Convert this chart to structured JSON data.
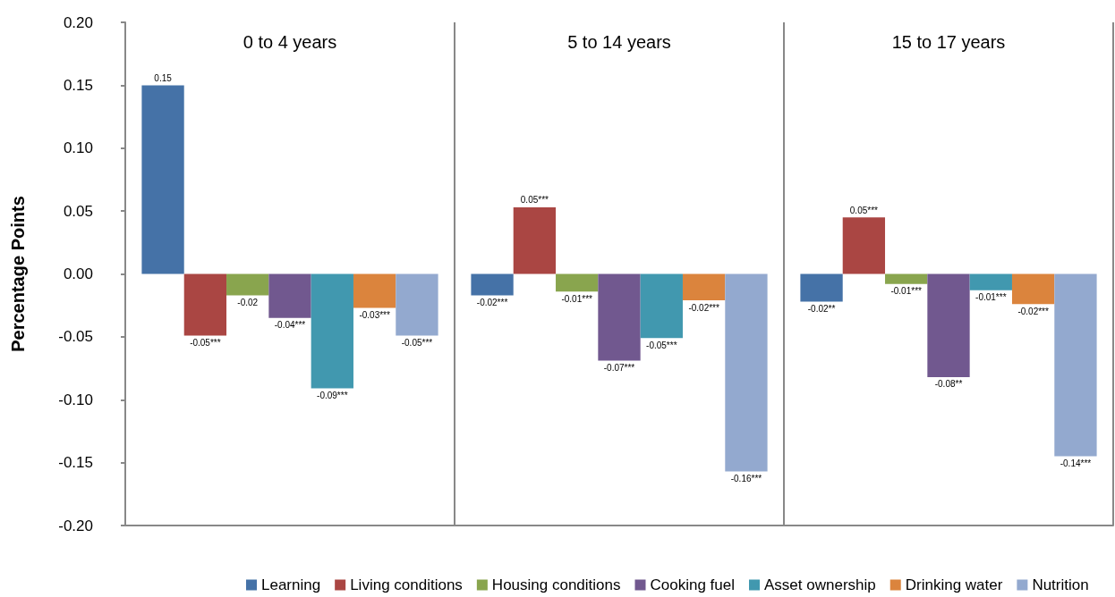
{
  "chart_data": {
    "type": "bar",
    "ylabel": "Percentage Points",
    "categories": [
      "0 to 4 years",
      "5 to 14 years",
      "15 to 17 years"
    ],
    "ylim": [
      -0.2,
      0.2
    ],
    "yticks": [
      {
        "value": -0.2,
        "label": "-0.20"
      },
      {
        "value": -0.15,
        "label": "-0.15"
      },
      {
        "value": -0.1,
        "label": "-0.10"
      },
      {
        "value": -0.05,
        "label": "-0.05"
      },
      {
        "value": 0,
        "label": "0.00"
      },
      {
        "value": 0.05,
        "label": "0.05"
      },
      {
        "value": 0.1,
        "label": "0.10"
      },
      {
        "value": 0.15,
        "label": "0.15"
      },
      {
        "value": 0.2,
        "label": "0.20"
      }
    ],
    "grid": "x",
    "legend": "bottom",
    "series": [
      {
        "name": "Learning",
        "color": "#4572a7",
        "values": [
          0.15,
          -0.017,
          -0.022
        ],
        "value_labels": [
          "0.15",
          "-0.02***",
          "-0.02**"
        ]
      },
      {
        "name": "Living conditions",
        "color": "#aa4643",
        "values": [
          -0.049,
          0.053,
          0.045
        ],
        "value_labels": [
          "-0.05***",
          "0.05***",
          "0.05***"
        ]
      },
      {
        "name": "Housing conditions",
        "color": "#89a54e",
        "values": [
          -0.017,
          -0.014,
          -0.008
        ],
        "value_labels": [
          "-0.02",
          "-0.01***",
          "-0.01***"
        ]
      },
      {
        "name": "Cooking fuel",
        "color": "#71588f",
        "values": [
          -0.035,
          -0.069,
          -0.082
        ],
        "value_labels": [
          "-0.04***",
          "-0.07***",
          "-0.08**"
        ]
      },
      {
        "name": "Asset ownership",
        "color": "#4198af",
        "values": [
          -0.091,
          -0.051,
          -0.013
        ],
        "value_labels": [
          "-0.09***",
          "-0.05***",
          "-0.01***"
        ]
      },
      {
        "name": "Drinking water",
        "color": "#db843d",
        "values": [
          -0.027,
          -0.021,
          -0.024
        ],
        "value_labels": [
          "-0.03***",
          "-0.02***",
          "-0.02***"
        ]
      },
      {
        "name": "Nutrition",
        "color": "#93a9cf",
        "values": [
          -0.049,
          -0.157,
          -0.145
        ],
        "value_labels": [
          "-0.05***",
          "-0.16***",
          "-0.14***"
        ]
      }
    ]
  }
}
